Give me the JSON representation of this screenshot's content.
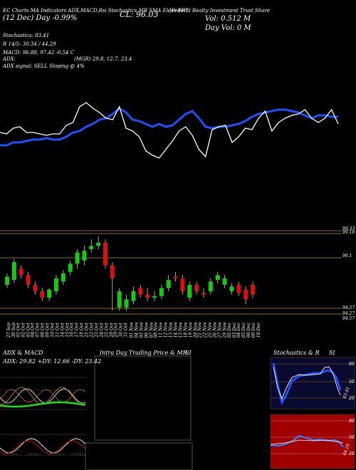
{
  "header": {
    "tabs": [
      "EC Charts",
      "MA",
      "Indicators",
      "ADX,MACD,Rsi",
      "Stochastics,MR",
      "SMA",
      "Elder",
      "FRT"
    ],
    "date_line": "(12 Dec) Day",
    "day_change": "-0.99%",
    "close": "CL: 96.03",
    "company": "(Federal Realty Investment Trust Share",
    "volume": "Vol: 0.512 M",
    "day_vol": "Day Vol: 0   M"
  },
  "indicators": {
    "stochastics": "Stochastics: 83.41",
    "r_line": "R 14/5: 30.34  / 44.29",
    "macd": "MACD: 96.88, 97.42  -0.54  C",
    "adx": "ADX:",
    "mgr": "(MGR) 29.8, 12.7, 23.4",
    "adx_signal": "ADX  signal: SELL  Sloping @ 4%"
  },
  "price_labels": [
    "99.33",
    "99.18",
    "96.1",
    "94.57",
    "94.27",
    "94.57"
  ],
  "dates": [
    "27 Sep",
    "30 Sep",
    "01 Oct",
    "02 Oct",
    "03 Oct",
    "04 Oct",
    "07 Oct",
    "08 Oct",
    "09 Oct",
    "10 Oct",
    "11 Oct",
    "14 Oct",
    "15 Oct",
    "16 Oct",
    "17 Oct",
    "18 Oct",
    "21 Oct",
    "22 Oct",
    "23 Oct",
    "24 Oct",
    "25 Oct",
    "28 Oct",
    "29 Oct",
    "30 Oct",
    "31 Oct",
    "01 Nov",
    "04 Nov",
    "05 Nov",
    "06 Nov",
    "07 Nov",
    "08 Nov",
    "11 Nov",
    "12 Nov",
    "13 Nov",
    "14 Nov",
    "15 Nov",
    "18 Nov",
    "19 Nov",
    "20 Nov",
    "21 Nov",
    "22 Nov",
    "25 Nov",
    "26 Nov",
    "27 Nov",
    "29 Nov",
    "02 Dec",
    "03 Dec",
    "04 Dec",
    "05 Dec",
    "06 Dec",
    "09 Dec",
    "10 Dec"
  ],
  "panels": {
    "adx_title": "ADX  & MACD",
    "adx_values": "ADX: 29.82  +DY: 12.66  -DY: 23.42",
    "intra_title": "Intra  Day Trading Price  & MR",
    "intra_si": "SI",
    "stoch_title": "Stochastics & R",
    "stoch_si": "SI",
    "stoch_levels": [
      "80",
      "50",
      "20"
    ],
    "stoch_value": "83.41",
    "rsi_levels": [
      "80",
      "50",
      "20"
    ],
    "rsi_value": "44.29"
  },
  "chart_data": [
    {
      "type": "line",
      "title": "",
      "series": [
        {
          "values": [
            66,
            66,
            70,
            70,
            72,
            74,
            74,
            76,
            74,
            74,
            78,
            84,
            86,
            92,
            96,
            102,
            104,
            110,
            118,
            112,
            102,
            100,
            96,
            92,
            96,
            92,
            94,
            102,
            110,
            114,
            104,
            92,
            90,
            92,
            92,
            94,
            96,
            100,
            106,
            110,
            112,
            114,
            116,
            116,
            114,
            112,
            108,
            104,
            108,
            108,
            106,
            106
          ]
        },
        {
          "values": [
            84,
            82,
            90,
            92,
            84,
            84,
            82,
            80,
            82,
            82,
            94,
            98,
            120,
            126,
            118,
            112,
            104,
            102,
            120,
            90,
            86,
            78,
            58,
            52,
            48,
            60,
            72,
            86,
            92,
            80,
            60,
            50,
            88,
            92,
            94,
            70,
            78,
            90,
            88,
            104,
            114,
            86,
            98,
            104,
            108,
            110,
            116,
            104,
            98,
            104,
            116,
            96
          ]
        }
      ],
      "colors": [
        "#1f4fff",
        "#ffffff"
      ]
    },
    {
      "type": "candlestick",
      "title": "",
      "levels": [
        99.33,
        99.18,
        96.1,
        94.57,
        94.27
      ],
      "open": [
        96.0,
        96.3,
        97.0,
        96.6,
        96.0,
        95.6,
        95.2,
        95.6,
        96.2,
        96.8,
        97.3,
        97.5,
        98.2,
        98.4,
        98.6,
        97.2,
        94.6,
        94.6,
        95.0,
        95.8,
        95.4,
        95.2,
        95.3,
        95.8,
        96.5,
        96.4,
        95.2,
        96.0,
        95.5,
        95.6,
        96.3,
        96.0,
        95.6,
        96.0,
        95.7,
        96.0
      ],
      "close": [
        96.5,
        97.4,
        96.6,
        96.0,
        95.6,
        95.2,
        95.7,
        96.4,
        96.7,
        97.3,
        98.0,
        98.1,
        98.4,
        98.6,
        97.2,
        96.4,
        95.6,
        95.1,
        95.6,
        95.4,
        95.2,
        95.3,
        95.8,
        96.3,
        96.4,
        95.6,
        96.0,
        95.6,
        95.4,
        96.2,
        96.6,
        96.4,
        95.9,
        95.5,
        95.1,
        95.4
      ],
      "high": [
        96.7,
        97.6,
        97.2,
        96.8,
        96.2,
        95.8,
        95.8,
        96.6,
        96.9,
        97.5,
        98.2,
        98.4,
        98.8,
        99.0,
        98.8,
        97.4,
        95.8,
        95.4,
        95.9,
        96.0,
        95.8,
        95.6,
        96.0,
        96.6,
        96.8,
        96.6,
        96.2,
        96.2,
        95.8,
        96.4,
        96.8,
        96.6,
        96.1,
        96.2,
        95.9,
        96.2
      ],
      "low": [
        95.8,
        96.1,
        96.4,
        95.8,
        95.4,
        95.0,
        95.0,
        95.4,
        96.0,
        96.6,
        97.0,
        97.2,
        98.0,
        98.2,
        97.0,
        94.4,
        94.4,
        94.4,
        94.8,
        95.2,
        95.0,
        95.0,
        95.1,
        95.6,
        96.2,
        95.4,
        95.0,
        95.4,
        95.2,
        95.4,
        96.1,
        95.8,
        95.4,
        95.3,
        94.8,
        95.2
      ]
    }
  ],
  "colors": {
    "bull": "#19c719",
    "bear": "#d61111",
    "ma": "#1f4fff",
    "level": "#8a6d1a",
    "rsi_bg": "#a00000",
    "stoch_bg": "#0a0a30"
  }
}
